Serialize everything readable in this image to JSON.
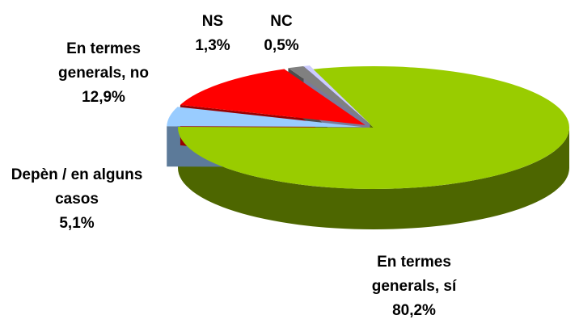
{
  "chart_data": {
    "type": "pie3d",
    "categories": [
      "En termes generals, sí",
      "Depèn / en alguns casos",
      "En termes generals, no",
      "NS",
      "NC"
    ],
    "values": [
      80.2,
      5.1,
      12.9,
      1.3,
      0.5
    ],
    "value_labels": [
      "80,2%",
      "5,1%",
      "12,9%",
      "1,3%",
      "0,5%"
    ],
    "colors": [
      "#99cc00",
      "#99ccff",
      "#ff0000",
      "#808080",
      "#ccccff"
    ]
  }
}
